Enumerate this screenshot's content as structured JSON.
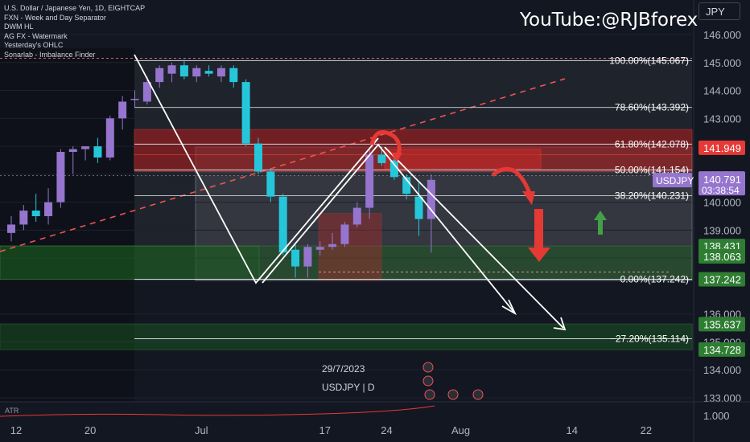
{
  "legend": {
    "title": "U.S. Dollar / Japanese Yen, 1D, EIGHTCAP",
    "indicators": [
      "FXN - Week and Day Separator",
      "DWM HL",
      "AG FX - Watermark",
      "Yesterday&#039;s OHLC",
      "Sonarlab - Imbalance Finder"
    ]
  },
  "watermark": "YouTube:@RJBforex",
  "currency": "JPY",
  "bottom": {
    "date": "29/7/2023",
    "symbol": "USDJPY  |  D",
    "atr": "ATR"
  },
  "colors": {
    "background": "#131722",
    "bull": "#9575cd",
    "bear": "#26c6da",
    "red_zone": "#e53935",
    "green_zone": "#2e7d32",
    "price_tag": "#9575cd"
  },
  "chart_data": {
    "type": "candlestick",
    "symbol": "USDJPY",
    "timeframe": "1D",
    "ylim": [
      133.0,
      146.5
    ],
    "y_ticks": [
      133.0,
      134.0,
      135.0,
      136.0,
      138.0,
      139.0,
      140.0,
      141.0,
      142.0,
      143.0,
      144.0,
      145.0,
      146.0
    ],
    "y_tick_labels": [
      "133.000",
      "134.000",
      "135.000",
      "136.000",
      "138.000",
      "139.000",
      "140.000",
      "141.000",
      "142.000",
      "143.000",
      "144.000",
      "145.000",
      "146.000"
    ],
    "x_tick_labels": [
      {
        "label": "12",
        "bar": 0
      },
      {
        "label": "20",
        "bar": 6
      },
      {
        "label": "Jul",
        "bar": 15
      },
      {
        "label": "17",
        "bar": 25
      },
      {
        "label": "24",
        "bar": 30
      },
      {
        "label": "Aug",
        "bar": 36
      },
      {
        "label": "14",
        "bar": 45
      },
      {
        "label": "22",
        "bar": 51
      }
    ],
    "bars_per_slot_note": "",
    "candles": [
      {
        "o": 138.9,
        "h": 139.5,
        "l": 138.6,
        "c": 139.2
      },
      {
        "o": 139.2,
        "h": 139.9,
        "l": 139.0,
        "c": 139.7
      },
      {
        "o": 139.7,
        "h": 140.3,
        "l": 139.3,
        "c": 139.5
      },
      {
        "o": 139.5,
        "h": 140.5,
        "l": 139.2,
        "c": 140.0
      },
      {
        "o": 140.0,
        "h": 141.9,
        "l": 139.8,
        "c": 141.8
      },
      {
        "o": 141.8,
        "h": 142.0,
        "l": 141.0,
        "c": 141.9
      },
      {
        "o": 141.9,
        "h": 142.0,
        "l": 141.5,
        "c": 142.0
      },
      {
        "o": 142.0,
        "h": 142.3,
        "l": 141.4,
        "c": 141.6
      },
      {
        "o": 141.6,
        "h": 143.1,
        "l": 141.5,
        "c": 143.0
      },
      {
        "o": 143.0,
        "h": 143.8,
        "l": 142.6,
        "c": 143.6
      },
      {
        "o": 143.7,
        "h": 144.0,
        "l": 143.4,
        "c": 143.7
      },
      {
        "o": 143.6,
        "h": 144.5,
        "l": 143.5,
        "c": 144.3
      },
      {
        "o": 144.3,
        "h": 144.9,
        "l": 144.1,
        "c": 144.8
      },
      {
        "o": 144.6,
        "h": 145.0,
        "l": 144.3,
        "c": 144.9
      },
      {
        "o": 144.9,
        "h": 145.1,
        "l": 144.4,
        "c": 144.5
      },
      {
        "o": 144.5,
        "h": 144.9,
        "l": 144.3,
        "c": 144.8
      },
      {
        "o": 144.7,
        "h": 144.9,
        "l": 144.5,
        "c": 144.6
      },
      {
        "o": 144.5,
        "h": 144.9,
        "l": 144.3,
        "c": 144.8
      },
      {
        "o": 144.8,
        "h": 144.9,
        "l": 144.1,
        "c": 144.3
      },
      {
        "o": 144.3,
        "h": 144.4,
        "l": 142.0,
        "c": 142.1
      },
      {
        "o": 142.1,
        "h": 142.3,
        "l": 141.0,
        "c": 141.1
      },
      {
        "o": 141.1,
        "h": 141.2,
        "l": 140.0,
        "c": 140.2
      },
      {
        "o": 140.2,
        "h": 140.3,
        "l": 138.1,
        "c": 138.2
      },
      {
        "o": 138.3,
        "h": 138.5,
        "l": 137.3,
        "c": 137.7
      },
      {
        "o": 137.7,
        "h": 138.5,
        "l": 137.3,
        "c": 138.4
      },
      {
        "o": 138.3,
        "h": 138.6,
        "l": 138.1,
        "c": 138.4
      },
      {
        "o": 138.4,
        "h": 138.9,
        "l": 138.3,
        "c": 138.5
      },
      {
        "o": 138.5,
        "h": 139.3,
        "l": 138.4,
        "c": 139.2
      },
      {
        "o": 139.2,
        "h": 140.0,
        "l": 139.1,
        "c": 139.8
      },
      {
        "o": 139.8,
        "h": 141.9,
        "l": 139.4,
        "c": 141.7
      },
      {
        "o": 141.7,
        "h": 142.0,
        "l": 141.3,
        "c": 141.4
      },
      {
        "o": 141.5,
        "h": 141.7,
        "l": 140.8,
        "c": 140.9
      },
      {
        "o": 140.9,
        "h": 141.0,
        "l": 140.1,
        "c": 140.3
      },
      {
        "o": 140.2,
        "h": 140.7,
        "l": 138.8,
        "c": 139.4
      },
      {
        "o": 139.4,
        "h": 141.0,
        "l": 138.2,
        "c": 140.8
      }
    ],
    "fib_levels": [
      {
        "label": "100.00%(145.067)",
        "price": 145.067
      },
      {
        "label": "78.60%(143.392)",
        "price": 143.392
      },
      {
        "label": "61.80%(142.078)",
        "price": 142.078
      },
      {
        "label": "50.00%(141.154)",
        "price": 141.154
      },
      {
        "label": "38.20%(140.231)",
        "price": 140.231
      },
      {
        "label": "0.00%(137.242)",
        "price": 137.242
      },
      {
        "label": "−27.20%(135.114)",
        "price": 135.114
      }
    ],
    "zones": [
      {
        "kind": "red",
        "top": 142.6,
        "bottom": 141.7
      },
      {
        "kind": "red",
        "top": 141.7,
        "bottom": 141.1
      },
      {
        "kind": "green",
        "top": 138.431,
        "bottom": 137.242
      },
      {
        "kind": "green",
        "top": 135.637,
        "bottom": 134.728
      }
    ],
    "price_tags": [
      {
        "price": 141.949,
        "label": "141.949",
        "color": "#e53935"
      },
      {
        "price": 140.791,
        "label": "140.791",
        "color": "#9575cd",
        "symbol": "USDJPY",
        "countdown": "03:38:54"
      },
      {
        "price": 138.431,
        "label": "138.431",
        "color": "#2e7d32"
      },
      {
        "price": 138.063,
        "label": "138.063",
        "color": "#2e7d32"
      },
      {
        "price": 137.242,
        "label": "137.242",
        "color": "#2e7d32"
      },
      {
        "price": 135.637,
        "label": "135.637",
        "color": "#2e7d32"
      },
      {
        "price": 134.728,
        "label": "134.728",
        "color": "#2e7d32"
      }
    ],
    "atr_label": "1.000"
  }
}
